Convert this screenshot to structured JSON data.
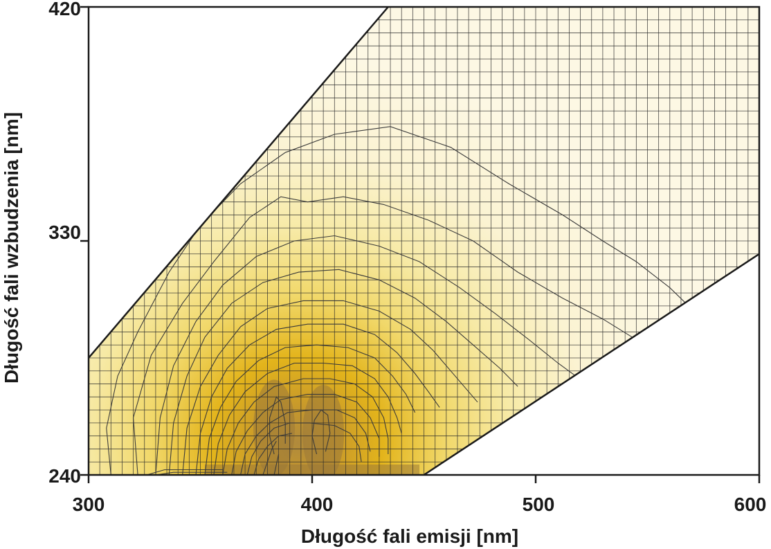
{
  "chart_data": {
    "type": "heatmap",
    "subtype": "excitation-emission contour map",
    "title": "",
    "xlabel": "Długość fali emisji [nm]",
    "ylabel": "Długość fali wzbudzenia [nm]",
    "xlim": [
      300,
      600
    ],
    "ylim": [
      240,
      420
    ],
    "x_ticks": [
      "300",
      "400",
      "500",
      "600"
    ],
    "y_ticks": [
      "240",
      "330",
      "420"
    ],
    "grid": true,
    "grid_step_x_nm": 5,
    "grid_step_y_nm": 5,
    "measured_region_boundary": {
      "upper_left_edge": [
        [
          300,
          285
        ],
        [
          434,
          420
        ]
      ],
      "lower_right_edge": [
        [
          450,
          240
        ],
        [
          600,
          325
        ]
      ]
    },
    "colors": {
      "low": "#fdf8e4",
      "mid": "#f1d86a",
      "high": "#e3b41b",
      "peak": "#9a7838",
      "contour": "#3a3a3a"
    },
    "contours": [
      {
        "level": 1,
        "points": [
          [
            310,
            240
          ],
          [
            308,
            258
          ],
          [
            313,
            278
          ],
          [
            322,
            295
          ],
          [
            336,
            318
          ],
          [
            350,
            336
          ],
          [
            368,
            352
          ],
          [
            388,
            364
          ],
          [
            410,
            371
          ],
          [
            435,
            374
          ],
          [
            462,
            366
          ],
          [
            488,
            352
          ],
          [
            512,
            340
          ],
          [
            530,
            330
          ],
          [
            545,
            322
          ],
          [
            560,
            312
          ],
          [
            572,
            302
          ],
          [
            585,
            293
          ],
          [
            598,
            281
          ],
          [
            600,
            278
          ]
        ]
      },
      {
        "level": 2,
        "points": [
          [
            322,
            240
          ],
          [
            320,
            262
          ],
          [
            328,
            286
          ],
          [
            342,
            306
          ],
          [
            356,
            322
          ],
          [
            372,
            339
          ],
          [
            386,
            347
          ],
          [
            398,
            345
          ],
          [
            414,
            347
          ],
          [
            432,
            344
          ],
          [
            452,
            338
          ],
          [
            472,
            330
          ],
          [
            492,
            318
          ],
          [
            512,
            308
          ],
          [
            530,
            300
          ],
          [
            545,
            292
          ],
          [
            558,
            285
          ],
          [
            565,
            280
          ]
        ]
      },
      {
        "level": 3,
        "points": [
          [
            330,
            240
          ],
          [
            332,
            262
          ],
          [
            338,
            282
          ],
          [
            348,
            299
          ],
          [
            360,
            313
          ],
          [
            375,
            324
          ],
          [
            392,
            330
          ],
          [
            410,
            332
          ],
          [
            430,
            328
          ],
          [
            448,
            322
          ],
          [
            466,
            312
          ],
          [
            482,
            302
          ],
          [
            497,
            292
          ],
          [
            510,
            283
          ],
          [
            518,
            278
          ]
        ]
      },
      {
        "level": 4,
        "points": [
          [
            336,
            240
          ],
          [
            338,
            260
          ],
          [
            344,
            278
          ],
          [
            352,
            293
          ],
          [
            364,
            306
          ],
          [
            378,
            314
          ],
          [
            394,
            318
          ],
          [
            412,
            319
          ],
          [
            430,
            315
          ],
          [
            446,
            308
          ],
          [
            460,
            299
          ],
          [
            472,
            290
          ],
          [
            484,
            281
          ],
          [
            492,
            274
          ]
        ]
      },
      {
        "level": 5,
        "points": [
          [
            342,
            240
          ],
          [
            344,
            258
          ],
          [
            350,
            274
          ],
          [
            358,
            286
          ],
          [
            368,
            297
          ],
          [
            380,
            304
          ],
          [
            396,
            307
          ],
          [
            414,
            307
          ],
          [
            430,
            303
          ],
          [
            444,
            296
          ],
          [
            454,
            288
          ],
          [
            462,
            280
          ],
          [
            470,
            272
          ],
          [
            474,
            268
          ]
        ]
      },
      {
        "level": 6,
        "points": [
          [
            348,
            240
          ],
          [
            350,
            256
          ],
          [
            355,
            270
          ],
          [
            362,
            281
          ],
          [
            372,
            290
          ],
          [
            384,
            296
          ],
          [
            398,
            298
          ],
          [
            414,
            298
          ],
          [
            428,
            294
          ],
          [
            438,
            287
          ],
          [
            446,
            279
          ],
          [
            452,
            272
          ],
          [
            457,
            266
          ]
        ]
      },
      {
        "level": 7,
        "points": [
          [
            352,
            240
          ],
          [
            354,
            254
          ],
          [
            359,
            266
          ],
          [
            366,
            276
          ],
          [
            376,
            284
          ],
          [
            388,
            289
          ],
          [
            402,
            290
          ],
          [
            416,
            289
          ],
          [
            428,
            285
          ],
          [
            436,
            278
          ],
          [
            442,
            271
          ],
          [
            446,
            264
          ]
        ]
      },
      {
        "level": 8,
        "points": [
          [
            356,
            240
          ],
          [
            358,
            252
          ],
          [
            363,
            263
          ],
          [
            370,
            272
          ],
          [
            380,
            279
          ],
          [
            392,
            283
          ],
          [
            405,
            283
          ],
          [
            418,
            282
          ],
          [
            428,
            277
          ],
          [
            434,
            270
          ],
          [
            438,
            262
          ],
          [
            440,
            256
          ]
        ]
      },
      {
        "level": 9,
        "points": [
          [
            360,
            240
          ],
          [
            362,
            250
          ],
          [
            367,
            260
          ],
          [
            374,
            268
          ],
          [
            383,
            274
          ],
          [
            396,
            277
          ],
          [
            408,
            277
          ],
          [
            419,
            275
          ],
          [
            427,
            270
          ],
          [
            432,
            262
          ],
          [
            434,
            254
          ],
          [
            434,
            248
          ]
        ]
      },
      {
        "level": 10,
        "points": [
          [
            364,
            240
          ],
          [
            366,
            249
          ],
          [
            371,
            257
          ],
          [
            378,
            264
          ],
          [
            386,
            269
          ],
          [
            398,
            271
          ],
          [
            410,
            271
          ],
          [
            420,
            268
          ],
          [
            426,
            262
          ],
          [
            430,
            254
          ],
          [
            430,
            247
          ]
        ]
      },
      {
        "level": 11,
        "points": [
          [
            368,
            240
          ],
          [
            370,
            248
          ],
          [
            375,
            255
          ],
          [
            381,
            260
          ],
          [
            389,
            264
          ],
          [
            400,
            265
          ],
          [
            411,
            265
          ],
          [
            419,
            262
          ],
          [
            424,
            256
          ],
          [
            426,
            249
          ]
        ]
      },
      {
        "level": 12,
        "points": [
          [
            371,
            240
          ],
          [
            373,
            247
          ],
          [
            377,
            253
          ],
          [
            383,
            258
          ],
          [
            390,
            260
          ],
          [
            399,
            260
          ],
          [
            410,
            259
          ],
          [
            417,
            256
          ],
          [
            421,
            251
          ],
          [
            422,
            245
          ]
        ]
      },
      {
        "level": 13,
        "points": [
          [
            374,
            240
          ],
          [
            376,
            246
          ],
          [
            380,
            251
          ],
          [
            385,
            255
          ],
          [
            391,
            256
          ]
        ]
      },
      {
        "level": 14,
        "points": [
          [
            378,
            240
          ],
          [
            380,
            245
          ],
          [
            382,
            250
          ],
          [
            384,
            253
          ]
        ]
      },
      {
        "level": 15,
        "points": [
          [
            383,
            240
          ],
          [
            384,
            244
          ],
          [
            385,
            248
          ]
        ]
      },
      {
        "level": 16,
        "points": [
          [
            383,
            248
          ],
          [
            381,
            255
          ],
          [
            381,
            262
          ],
          [
            384,
            270
          ],
          [
            386,
            268
          ],
          [
            388,
            260
          ],
          [
            388,
            252
          ]
        ]
      },
      {
        "level": 17,
        "points": [
          [
            402,
            248
          ],
          [
            400,
            255
          ],
          [
            401,
            261
          ],
          [
            404,
            265
          ],
          [
            407,
            263
          ],
          [
            408,
            256
          ],
          [
            406,
            249
          ]
        ]
      },
      {
        "level": 18,
        "points": [
          [
            330,
            240
          ],
          [
            338,
            241
          ],
          [
            346,
            241
          ],
          [
            354,
            241
          ],
          [
            362,
            241
          ]
        ]
      },
      {
        "level": 19,
        "points": [
          [
            326,
            240
          ],
          [
            334,
            242
          ],
          [
            342,
            242
          ],
          [
            350,
            242
          ],
          [
            360,
            242
          ]
        ]
      }
    ],
    "peaks": [
      {
        "x": 383,
        "y": 258
      },
      {
        "x": 405,
        "y": 256
      }
    ]
  }
}
